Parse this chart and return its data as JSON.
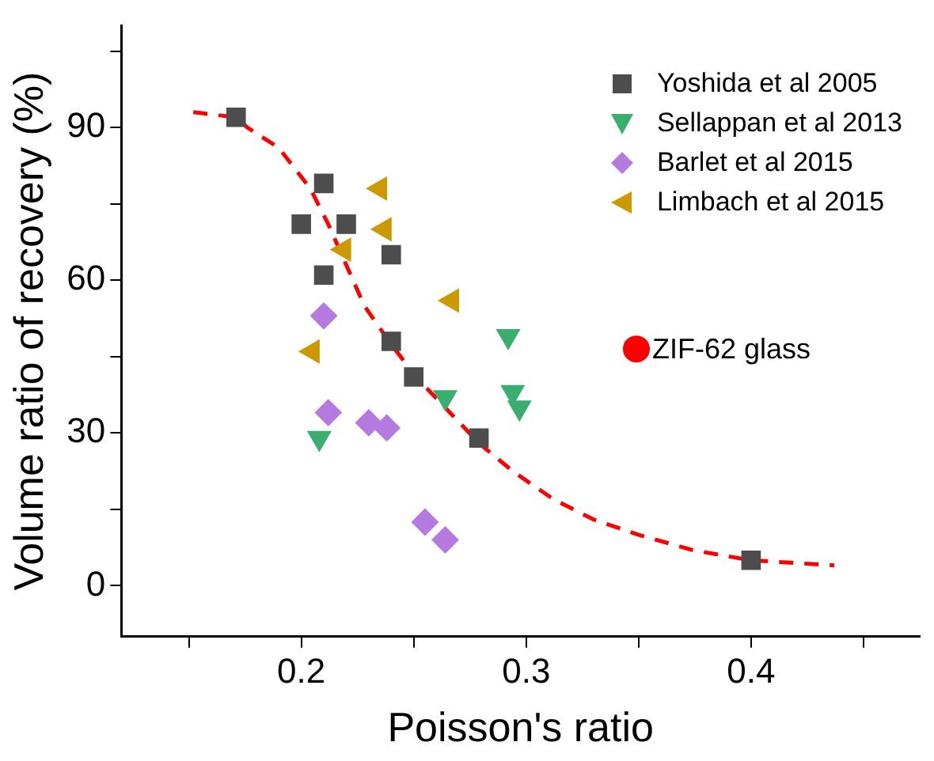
{
  "chart_data": {
    "type": "scatter",
    "xlabel": "Poisson's ratio",
    "ylabel": "Volume ratio of recovery (%)",
    "xlim": [
      0.12,
      0.475
    ],
    "xticks": [
      {
        "value": 0.15,
        "label": null
      },
      0.2,
      {
        "value": 0.25,
        "label": null
      },
      0.3,
      {
        "value": 0.35,
        "label": null
      },
      0.4,
      {
        "value": 0.45,
        "label": null
      }
    ],
    "ylim": [
      -10,
      110
    ],
    "yticks": [
      0,
      {
        "value": 15,
        "label": null
      },
      30,
      {
        "value": 45,
        "label": null
      },
      60,
      {
        "value": 75,
        "label": null
      },
      90,
      {
        "value": 105,
        "label": null
      }
    ],
    "grid": false,
    "legend": "top right",
    "series": [
      {
        "name": "Yoshida et al 2005",
        "color": "#4d4d4d",
        "marker": "square",
        "x": [
          0.171,
          0.21,
          0.2,
          0.22,
          0.24,
          0.21,
          0.24,
          0.25,
          0.279,
          0.4
        ],
        "values": [
          92,
          79,
          71,
          71,
          65,
          61,
          48,
          41,
          29,
          5
        ]
      },
      {
        "name": "Sellappan et al 2013",
        "color": "#3aae6e",
        "marker": "triangle",
        "x": [
          0.208,
          0.264,
          0.292,
          0.294,
          0.297
        ],
        "values": [
          29,
          37,
          49,
          38,
          35
        ]
      },
      {
        "name": "Barlet et al 2015",
        "color": "#b57ae0",
        "marker": "diamond",
        "x": [
          0.21,
          0.212,
          0.23,
          0.238,
          0.255,
          0.264
        ],
        "values": [
          53,
          34,
          32,
          31,
          12.5,
          9
        ]
      },
      {
        "name": "Limbach et al 2015",
        "color": "#cc9900",
        "marker": "triangle",
        "x": [
          0.235,
          0.237,
          0.219,
          0.267,
          0.205
        ],
        "values": [
          78,
          70,
          66,
          56,
          46
        ]
      },
      {
        "name": "ZIF-62 glass",
        "color": "#ff0000",
        "marker": "circle",
        "x": [
          0.349
        ],
        "values": [
          46.5
        ]
      },
      {
        "type": "line",
        "color": "#ff0000",
        "marker": "none",
        "line_style": "dashed",
        "x": [
          0.152,
          0.171,
          0.176,
          0.19,
          0.204,
          0.212,
          0.22,
          0.228,
          0.239,
          0.251,
          0.264,
          0.279,
          0.294,
          0.312,
          0.33,
          0.35,
          0.374,
          0.4,
          0.437
        ],
        "values": [
          93,
          92,
          90,
          86,
          78,
          71,
          63,
          55,
          48,
          41,
          35,
          28,
          22.5,
          17,
          13,
          10,
          7,
          5,
          4
        ]
      }
    ]
  }
}
